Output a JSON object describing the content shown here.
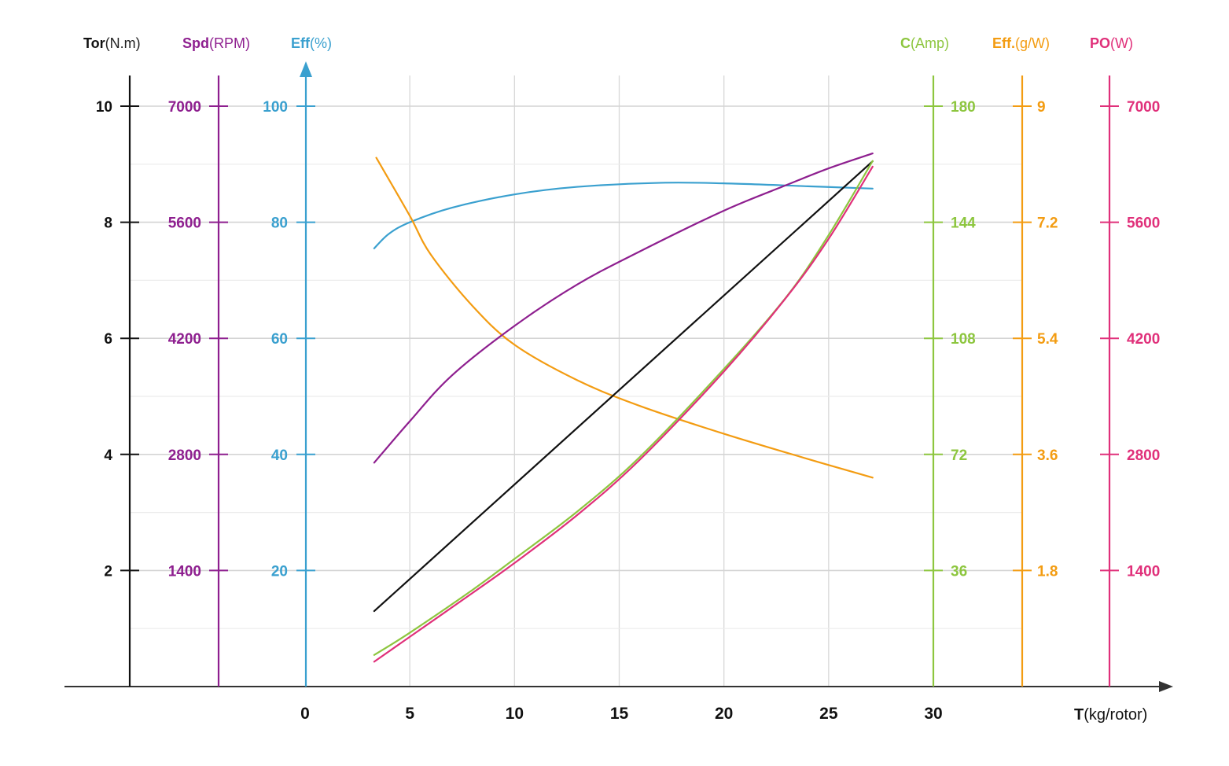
{
  "chart_data": {
    "type": "line",
    "grid": true,
    "x_axis": {
      "label_bold": "T",
      "label_rest": "(kg/rotor)",
      "range": [
        0,
        30
      ],
      "ticks": [
        0,
        5,
        10,
        15,
        20,
        25,
        30
      ],
      "tick_labels": [
        "0",
        "5",
        "10",
        "15",
        "20",
        "25",
        "30"
      ]
    },
    "y_axes": [
      {
        "id": "tor",
        "label_bold": "Tor",
        "label_rest": "(N.m)",
        "side": "left",
        "color": "#111111",
        "range": [
          0,
          10
        ],
        "ticks": [
          2,
          4,
          6,
          8,
          10
        ],
        "tick_labels": [
          "2",
          "4",
          "6",
          "8",
          "10"
        ]
      },
      {
        "id": "spd",
        "label_bold": "Spd",
        "label_rest": "(RPM)",
        "side": "left",
        "color": "#8e1f8f",
        "range": [
          0,
          7000
        ],
        "ticks": [
          1400,
          2800,
          4200,
          5600,
          7000
        ],
        "tick_labels": [
          "1400",
          "2800",
          "4200",
          "5600",
          "7000"
        ]
      },
      {
        "id": "eff",
        "label_bold": "Eff",
        "label_rest": "(%)",
        "side": "left",
        "color": "#3aa0cf",
        "range": [
          0,
          100
        ],
        "ticks": [
          20,
          40,
          60,
          80,
          100
        ],
        "tick_labels": [
          "20",
          "40",
          "60",
          "80",
          "100"
        ]
      },
      {
        "id": "cur",
        "label_bold": "C",
        "label_rest": "(Amp)",
        "side": "right",
        "color": "#8dc63f",
        "range": [
          0,
          180
        ],
        "ticks": [
          36,
          72,
          108,
          144,
          180
        ],
        "tick_labels": [
          "36",
          "72",
          "108",
          "144",
          "180"
        ]
      },
      {
        "id": "effg",
        "label_bold": "Eff.",
        "label_rest": "(g/W)",
        "side": "right",
        "color": "#f39c12",
        "range": [
          0,
          9
        ],
        "ticks": [
          1.8,
          3.6,
          5.4,
          7.2,
          9
        ],
        "tick_labels": [
          "1.8",
          "3.6",
          "5.4",
          "7.2",
          "9"
        ]
      },
      {
        "id": "po",
        "label_bold": "PO",
        "label_rest": "(W)",
        "side": "right",
        "color": "#e0307a",
        "range": [
          0,
          7000
        ],
        "ticks": [
          1400,
          2800,
          4200,
          5600,
          7000
        ],
        "tick_labels": [
          "1400",
          "2800",
          "4200",
          "5600",
          "7000"
        ]
      }
    ],
    "series": [
      {
        "axis": "eff",
        "color": "#3aa0cf",
        "x": [
          3.3,
          4,
          5,
          7,
          10,
          13,
          17,
          20,
          24,
          27.1
        ],
        "y": [
          75.5,
          78,
          80,
          82.5,
          84.8,
          86.1,
          86.8,
          86.7,
          86.2,
          85.8
        ]
      },
      {
        "axis": "effg",
        "color": "#f39c12",
        "x": [
          3.4,
          5,
          6,
          8,
          10,
          13,
          16,
          20,
          24,
          27.1
        ],
        "y": [
          8.2,
          7.3,
          6.7,
          5.9,
          5.3,
          4.75,
          4.35,
          3.92,
          3.53,
          3.24
        ]
      },
      {
        "axis": "spd",
        "color": "#8e1f8f",
        "x": [
          3.3,
          5,
          7,
          10,
          13,
          16,
          20,
          23,
          25,
          27.1
        ],
        "y": [
          2700,
          3200,
          3750,
          4350,
          4850,
          5250,
          5740,
          6050,
          6250,
          6430
        ]
      },
      {
        "axis": "tor",
        "color": "#111111",
        "x": [
          3.3,
          27.1
        ],
        "y": [
          1.3,
          9.05
        ]
      },
      {
        "axis": "cur",
        "color": "#8dc63f",
        "x": [
          3.3,
          5,
          8,
          10,
          13,
          16,
          20,
          23,
          25,
          27.1
        ],
        "y": [
          9.8,
          16.7,
          30,
          39.6,
          54.3,
          71.3,
          98.5,
          121,
          140,
          163
        ]
      },
      {
        "axis": "po",
        "color": "#e0307a",
        "x": [
          3.3,
          5,
          8,
          10,
          13,
          16,
          20,
          23,
          25,
          27.1
        ],
        "y": [
          300,
          600,
          1130,
          1490,
          2070,
          2740,
          3800,
          4700,
          5400,
          6270
        ]
      }
    ]
  }
}
